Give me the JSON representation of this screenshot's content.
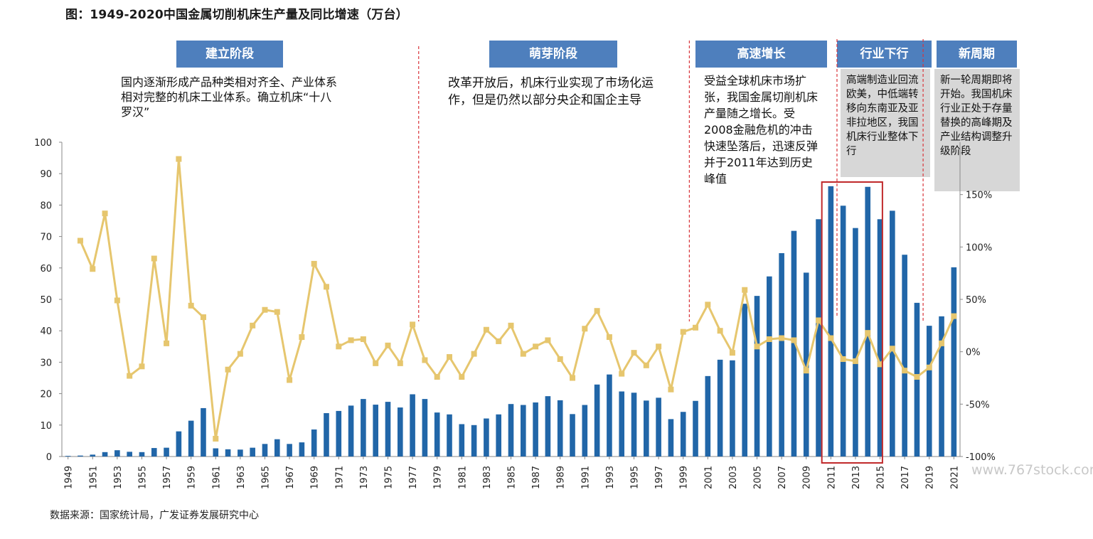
{
  "title": "图：1949-2020中国金属切削机床生产量及同比增速（万台）",
  "source": "数据来源：国家统计局，广发证券发展研究中心",
  "watermark": "www.767stock.com",
  "phases": [
    {
      "label": "建立阶段",
      "desc": "国内逐渐形成产品种类相对齐全、产业体系相对完整的机床工业体系。确立机床“十八罗汉”"
    },
    {
      "label": "萌芽阶段",
      "desc": "改革开放后，机床行业实现了市场化运作，但是仍然以部分央企和国企主导"
    },
    {
      "label": "高速增长",
      "desc": "受益全球机床市场扩张，我国金属切削机床产量随之增长。受2008金融危机的冲击快速坠落后，迅速反弹并于2011年达到历史峰值"
    },
    {
      "label": "行业下行",
      "desc": "高端制造业回流欧美，中低端转移向东南亚及亚非拉地区，我国机床行业整体下行"
    },
    {
      "label": "新周期",
      "desc": "新一轮周期即将开始。我国机床行业正处于存量替换的高峰期及产业结构调整升级阶段"
    }
  ],
  "colors": {
    "bar": "#2166a8",
    "line": "#e6c66e",
    "phase": "#4e7fbd",
    "highlight": "#c0292b",
    "divider": "#d9343a"
  },
  "chart_data": {
    "type": "bar+line",
    "x": [
      1949,
      1950,
      1951,
      1952,
      1953,
      1954,
      1955,
      1956,
      1957,
      1958,
      1959,
      1960,
      1961,
      1962,
      1963,
      1964,
      1965,
      1966,
      1967,
      1968,
      1969,
      1970,
      1971,
      1972,
      1973,
      1974,
      1975,
      1976,
      1977,
      1978,
      1979,
      1980,
      1981,
      1982,
      1983,
      1984,
      1985,
      1986,
      1987,
      1988,
      1989,
      1990,
      1991,
      1992,
      1993,
      1994,
      1995,
      1996,
      1997,
      1998,
      1999,
      2000,
      2001,
      2002,
      2003,
      2004,
      2005,
      2006,
      2007,
      2008,
      2009,
      2010,
      2011,
      2012,
      2013,
      2014,
      2015,
      2016,
      2017,
      2018,
      2019,
      2020,
      2021
    ],
    "x_tick_labels": [
      "1949",
      "1951",
      "1953",
      "1955",
      "1957",
      "1959",
      "1961",
      "1963",
      "1965",
      "1967",
      "1969",
      "1971",
      "1973",
      "1975",
      "1977",
      "1979",
      "1981",
      "1983",
      "1985",
      "1987",
      "1989",
      "1991",
      "1993",
      "1995",
      "1997",
      "1999",
      "2001",
      "2003",
      "2005",
      "2007",
      "2009",
      "2011",
      "2013",
      "2015",
      "2017",
      "2019",
      "2021"
    ],
    "series": [
      {
        "values": [
          0.2,
          0.3,
          0.6,
          1.4,
          2.0,
          1.5,
          1.4,
          2.7,
          2.8,
          8.0,
          11.4,
          15.4,
          2.6,
          2.3,
          2.2,
          2.8,
          4.0,
          5.5,
          4.0,
          4.5,
          8.6,
          13.8,
          14.5,
          16.2,
          18.3,
          16.5,
          17.4,
          15.6,
          19.8,
          18.3,
          14.0,
          13.4,
          10.3,
          10.0,
          12.1,
          13.4,
          16.7,
          16.4,
          17.2,
          19.2,
          17.9,
          13.5,
          16.4,
          22.9,
          26.1,
          20.7,
          20.3,
          17.8,
          18.7,
          11.9,
          14.2,
          17.7,
          25.6,
          30.8,
          30.6,
          48.6,
          51.1,
          57.3,
          64.7,
          71.8,
          58.5,
          75.5,
          86.0,
          79.8,
          72.7,
          85.8,
          75.5,
          78.2,
          64.2,
          48.9,
          41.6,
          44.6,
          60.2
        ],
        "axis": "left",
        "kind": "bar"
      },
      {
        "values": [
          null,
          106,
          79,
          132,
          49,
          -23,
          -14,
          89,
          8,
          184,
          44,
          33,
          -83,
          -17,
          -2,
          25,
          40,
          38,
          -27,
          14,
          84,
          62,
          5,
          11,
          12,
          -11,
          6,
          -11,
          26,
          -8,
          -24,
          -5,
          -24,
          -2,
          21,
          10,
          25,
          -2,
          5,
          11,
          -7,
          -25,
          22,
          39,
          14,
          -21,
          -1,
          -13,
          5,
          -36,
          19,
          23,
          45,
          20,
          -1,
          59,
          5,
          12,
          13,
          11,
          -18,
          30,
          13,
          -7,
          -9,
          18,
          -12,
          3,
          -18,
          -24,
          -15,
          8,
          34
        ],
        "axis": "right",
        "kind": "line"
      }
    ],
    "y_left": {
      "ticks": [
        "0",
        "10",
        "20",
        "30",
        "40",
        "50",
        "60",
        "70",
        "80",
        "90",
        "100"
      ],
      "range": [
        0,
        100
      ]
    },
    "y_right": {
      "ticks": [
        "-100%",
        "-50%",
        "0%",
        "50%",
        "100%",
        "150%"
      ],
      "range": [
        -100,
        200
      ]
    },
    "highlight_range": [
      2010.5,
      2014.5
    ],
    "dividers": [
      1977.5,
      1999.5,
      2011.5,
      2018.5
    ]
  }
}
